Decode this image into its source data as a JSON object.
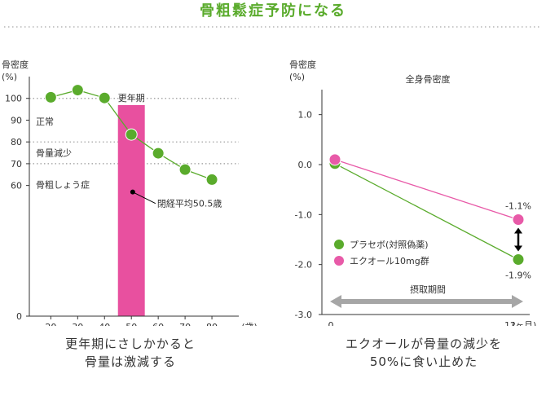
{
  "title": "骨粗鬆症予防になる",
  "colors": {
    "title": "#5aab2c",
    "green": "#5aab2c",
    "pink": "#e85aa8",
    "band": "#e8509f",
    "arrow": "#a6a6a6",
    "axis": "#333333",
    "dotted": "#999999"
  },
  "captions": {
    "left": [
      "更年期にさしかかると",
      "骨量は激減する"
    ],
    "right": [
      "エクオールが骨量の減少を",
      "50%に食い止めた"
    ]
  },
  "chart_data": [
    {
      "type": "line",
      "ylabel": [
        "骨密度",
        "(%)"
      ],
      "xunit": "(歳)",
      "xlim": [
        12,
        90
      ],
      "ylim": [
        0,
        110
      ],
      "x_ticks": [
        20,
        30,
        40,
        50,
        60,
        70,
        80
      ],
      "y_ticks": [
        0,
        60,
        70,
        80,
        90,
        100
      ],
      "series": [
        {
          "x": [
            20,
            30,
            40,
            50,
            60,
            70,
            80
          ],
          "values": [
            100.5,
            103.8,
            100.2,
            83.4,
            74.8,
            67.3,
            62.7
          ]
        }
      ],
      "reference_lines": [
        100,
        80,
        70
      ],
      "band": {
        "label": "更年期",
        "x": [
          45,
          55
        ]
      },
      "zone_labels": [
        {
          "text": "正常",
          "y": 89.5
        },
        {
          "text": "骨量減少",
          "y": 75
        },
        {
          "text": "骨粗しょう症",
          "y": 60.5
        }
      ],
      "annotation": {
        "text": "閉経平均50.5歳",
        "x": 50.5,
        "y": 57
      }
    },
    {
      "type": "line",
      "title": "全身骨密度",
      "ylabel": [
        "骨密度",
        "(%)"
      ],
      "xunit": "(ヶ月)",
      "ylim": [
        -3,
        1.5
      ],
      "x_ticks": [
        "0",
        "12"
      ],
      "y_ticks": [
        -3.0,
        -2.0,
        -1.0,
        0.0,
        1.0
      ],
      "y_tick_labels": [
        "-3.0",
        "-2.0",
        "-1.0",
        "0.0",
        "1.0"
      ],
      "series": [
        {
          "name": "プラセボ(対照偽薬)",
          "color": "#5aab2c",
          "x": [
            0,
            12
          ],
          "values": [
            0.02,
            -1.9
          ]
        },
        {
          "name": "エクオール10mg群",
          "color": "#e85aa8",
          "x": [
            0,
            12
          ],
          "values": [
            0.1,
            -1.1
          ]
        }
      ],
      "data_labels": [
        {
          "text": "-1.1%",
          "series": "エクオール10mg群",
          "x": 12,
          "y": -1.1
        },
        {
          "text": "-1.9%",
          "series": "プラセボ(対照偽薬)",
          "x": 12,
          "y": -1.9
        }
      ],
      "period": {
        "label": "摂取期間",
        "x": [
          0,
          12
        ]
      },
      "legend": "bottom-left"
    }
  ]
}
